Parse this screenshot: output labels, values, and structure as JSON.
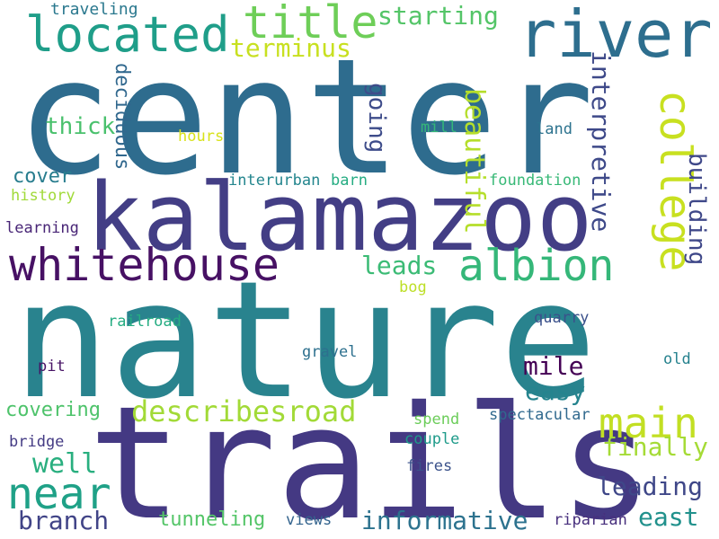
{
  "words": [
    {
      "text": "center",
      "color": "#2e6c8e"
    },
    {
      "text": "nature",
      "color": "#29838e"
    },
    {
      "text": "trails",
      "color": "#443983"
    },
    {
      "text": "kalamazoo",
      "color": "#433e85"
    },
    {
      "text": "river",
      "color": "#2d6e8e"
    },
    {
      "text": "located",
      "color": "#1f9e89"
    },
    {
      "text": "title",
      "color": "#6ece58"
    },
    {
      "text": "whitehouse",
      "color": "#471164"
    },
    {
      "text": "albion",
      "color": "#35b779"
    },
    {
      "text": "college",
      "color": "#c8e020"
    },
    {
      "text": "main",
      "color": "#c2df23"
    },
    {
      "text": "near",
      "color": "#1fa187"
    },
    {
      "text": "describesroad",
      "color": "#a2da37"
    },
    {
      "text": "starting",
      "color": "#54c568"
    },
    {
      "text": "terminus",
      "color": "#c8e020"
    },
    {
      "text": "traveling",
      "color": "#2a788e"
    },
    {
      "text": "interpretive",
      "color": "#3e4989"
    },
    {
      "text": "beautiful",
      "color": "#b5de2b"
    },
    {
      "text": "going",
      "color": "#3e4c8a"
    },
    {
      "text": "deciduous",
      "color": "#31688e"
    },
    {
      "text": "building",
      "color": "#3f4889"
    },
    {
      "text": "thick",
      "color": "#4ac16d"
    },
    {
      "text": "hours",
      "color": "#d8e219"
    },
    {
      "text": "mill",
      "color": "#35b779"
    },
    {
      "text": "land",
      "color": "#2c728e"
    },
    {
      "text": "cover",
      "color": "#287d8e"
    },
    {
      "text": "history",
      "color": "#a0da39"
    },
    {
      "text": "interurban",
      "color": "#24868e"
    },
    {
      "text": "barn",
      "color": "#25ac82"
    },
    {
      "text": "foundation",
      "color": "#38b977"
    },
    {
      "text": "learning",
      "color": "#482576"
    },
    {
      "text": "leads",
      "color": "#3bbb75"
    },
    {
      "text": "bog",
      "color": "#bddf26"
    },
    {
      "text": "railroad",
      "color": "#25ac82"
    },
    {
      "text": "quarry",
      "color": "#3b518b"
    },
    {
      "text": "mile",
      "color": "#440154"
    },
    {
      "text": "easy",
      "color": "#25848e"
    },
    {
      "text": "gravel",
      "color": "#2d708e"
    },
    {
      "text": "old",
      "color": "#26828e"
    },
    {
      "text": "pit",
      "color": "#471365"
    },
    {
      "text": "covering",
      "color": "#4ec36b"
    },
    {
      "text": "well",
      "color": "#29af7f"
    },
    {
      "text": "finally",
      "color": "#a5db36"
    },
    {
      "text": "spend",
      "color": "#6ccd5a"
    },
    {
      "text": "spectacular",
      "color": "#30698e"
    },
    {
      "text": "bridge",
      "color": "#443b84"
    },
    {
      "text": "couple",
      "color": "#1e9b8a"
    },
    {
      "text": "leading",
      "color": "#3f4788"
    },
    {
      "text": "fires",
      "color": "#3b528b"
    },
    {
      "text": "branch",
      "color": "#414487"
    },
    {
      "text": "tunneling",
      "color": "#54c568"
    },
    {
      "text": "views",
      "color": "#33638d"
    },
    {
      "text": "informative",
      "color": "#2c728e"
    },
    {
      "text": "riparian",
      "color": "#472f7d"
    },
    {
      "text": "east",
      "color": "#21918c"
    }
  ]
}
